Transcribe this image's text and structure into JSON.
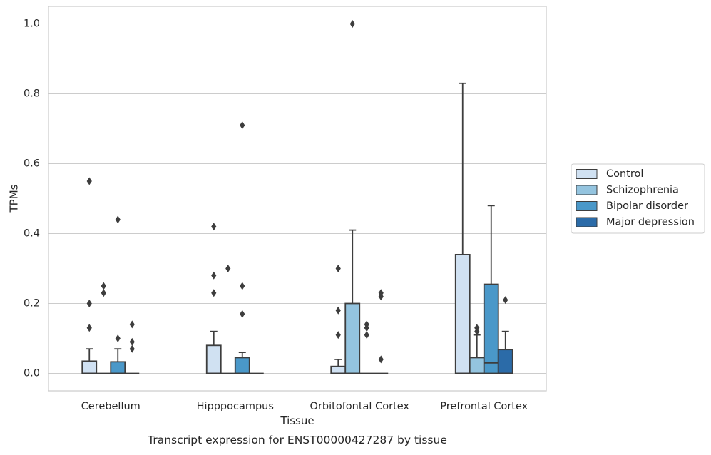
{
  "chart_data": {
    "type": "box",
    "title": "Transcript expression for ENST00000427287 by tissue",
    "xlabel": "Tissue",
    "ylabel": "TPMs",
    "ylim": [
      -0.05,
      1.05
    ],
    "yticks": [
      0.0,
      0.2,
      0.4,
      0.6,
      0.8,
      1.0
    ],
    "grid": true,
    "legend_position": "right",
    "categories": [
      "Cerebellum",
      "Hipppocampus",
      "Orbitofontal Cortex",
      "Prefrontal Cortex"
    ],
    "series": [
      {
        "name": "Control",
        "color": "#d0e1f2",
        "boxes": [
          {
            "min": 0.0,
            "q1": 0.0,
            "median": 0.0,
            "q3": 0.035,
            "max": 0.07,
            "outliers": [
              0.13,
              0.2,
              0.55
            ]
          },
          {
            "min": 0.0,
            "q1": 0.0,
            "median": 0.0,
            "q3": 0.08,
            "max": 0.12,
            "outliers": [
              0.23,
              0.28,
              0.42
            ]
          },
          {
            "min": 0.0,
            "q1": 0.0,
            "median": 0.0,
            "q3": 0.02,
            "max": 0.04,
            "outliers": [
              0.11,
              0.18,
              0.3
            ]
          },
          {
            "min": 0.0,
            "q1": 0.0,
            "median": 0.0,
            "q3": 0.34,
            "max": 0.83,
            "outliers": []
          }
        ]
      },
      {
        "name": "Schizophrenia",
        "color": "#94c4df",
        "boxes": [
          {
            "min": 0.0,
            "q1": 0.0,
            "median": 0.0,
            "q3": 0.0,
            "max": 0.0,
            "outliers": [
              0.23,
              0.25
            ]
          },
          {
            "min": 0.0,
            "q1": 0.0,
            "median": 0.0,
            "q3": 0.0,
            "max": 0.0,
            "outliers": [
              0.3
            ]
          },
          {
            "min": 0.0,
            "q1": 0.0,
            "median": 0.0,
            "q3": 0.2,
            "max": 0.41,
            "outliers": [
              1.0
            ]
          },
          {
            "min": 0.0,
            "q1": 0.0,
            "median": 0.0,
            "q3": 0.045,
            "max": 0.11,
            "outliers": [
              0.12,
              0.13
            ]
          }
        ]
      },
      {
        "name": "Bipolar disorder",
        "color": "#4a98c9",
        "boxes": [
          {
            "min": 0.0,
            "q1": 0.0,
            "median": 0.0,
            "q3": 0.033,
            "max": 0.07,
            "outliers": [
              0.1,
              0.44
            ]
          },
          {
            "min": 0.0,
            "q1": 0.0,
            "median": 0.0,
            "q3": 0.045,
            "max": 0.06,
            "outliers": [
              0.17,
              0.25,
              0.71
            ]
          },
          {
            "min": 0.0,
            "q1": 0.0,
            "median": 0.0,
            "q3": 0.0,
            "max": 0.0,
            "outliers": [
              0.11,
              0.13,
              0.14
            ]
          },
          {
            "min": 0.0,
            "q1": 0.0,
            "median": 0.03,
            "q3": 0.255,
            "max": 0.48,
            "outliers": []
          }
        ]
      },
      {
        "name": "Major depression",
        "color": "#2b6ba8",
        "boxes": [
          {
            "min": 0.0,
            "q1": 0.0,
            "median": 0.0,
            "q3": 0.0,
            "max": 0.0,
            "outliers": [
              0.07,
              0.09,
              0.14
            ]
          },
          {
            "min": 0.0,
            "q1": 0.0,
            "median": 0.0,
            "q3": 0.0,
            "max": 0.0,
            "outliers": []
          },
          {
            "min": 0.0,
            "q1": 0.0,
            "median": 0.0,
            "q3": 0.0,
            "max": 0.0,
            "outliers": [
              0.04,
              0.22,
              0.23
            ]
          },
          {
            "min": 0.0,
            "q1": 0.0,
            "median": 0.0,
            "q3": 0.068,
            "max": 0.12,
            "outliers": [
              0.21
            ]
          }
        ]
      }
    ]
  }
}
